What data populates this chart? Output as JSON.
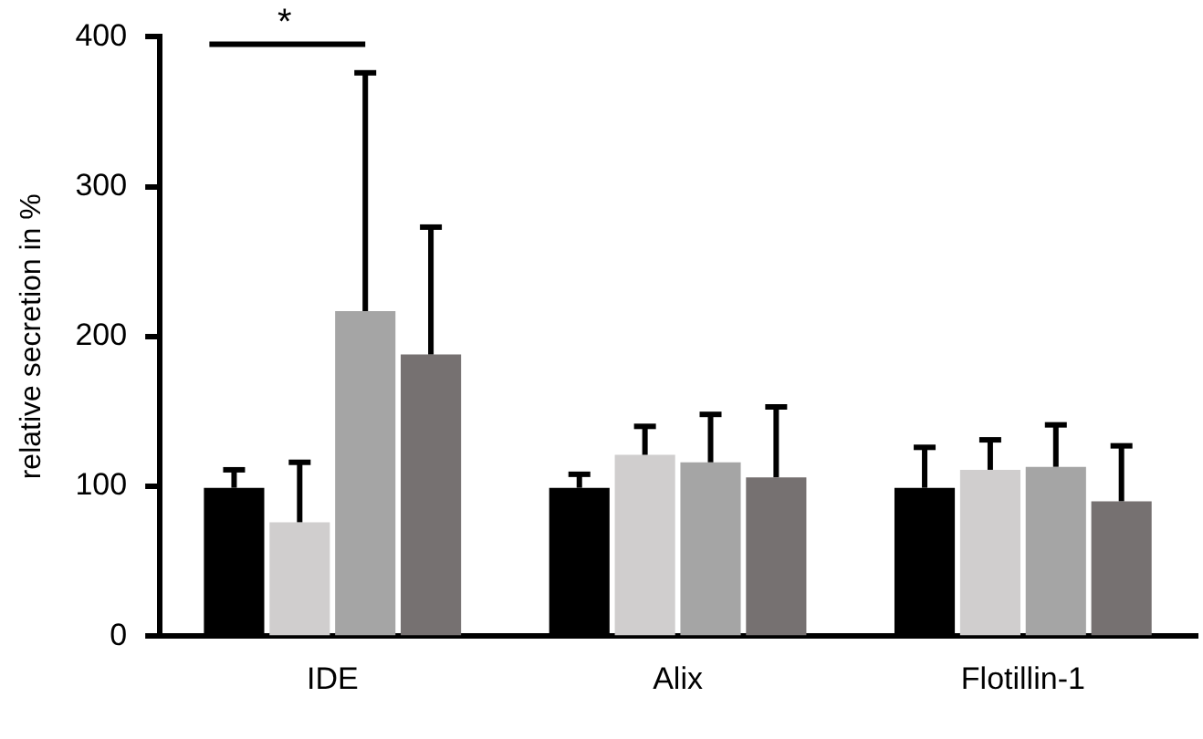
{
  "chart_data": {
    "type": "bar",
    "ylabel": "relative secretion in %",
    "categories": [
      "IDE",
      "Alix",
      "Flotillin-1"
    ],
    "ylim": [
      0,
      400
    ],
    "yticks": [
      0,
      100,
      200,
      300,
      400
    ],
    "grid": false,
    "legend": false,
    "series": [
      {
        "color": "#000000",
        "values": [
          99,
          99,
          99
        ],
        "errors": [
          [
            99,
            111
          ],
          [
            99,
            108
          ],
          [
            99,
            126
          ]
        ]
      },
      {
        "color": "#d0cece",
        "values": [
          76,
          121,
          111
        ],
        "errors": [
          [
            76,
            116
          ],
          [
            121,
            140
          ],
          [
            111,
            131
          ]
        ]
      },
      {
        "color": "#a5a5a5",
        "values": [
          217,
          116,
          113
        ],
        "errors": [
          [
            217,
            376
          ],
          [
            116,
            148
          ],
          [
            113,
            141
          ]
        ]
      },
      {
        "color": "#767171",
        "values": [
          188,
          106,
          90
        ],
        "errors": [
          [
            188,
            273
          ],
          [
            106,
            153
          ],
          [
            90,
            127
          ]
        ]
      }
    ],
    "annotations": [
      "*"
    ]
  }
}
